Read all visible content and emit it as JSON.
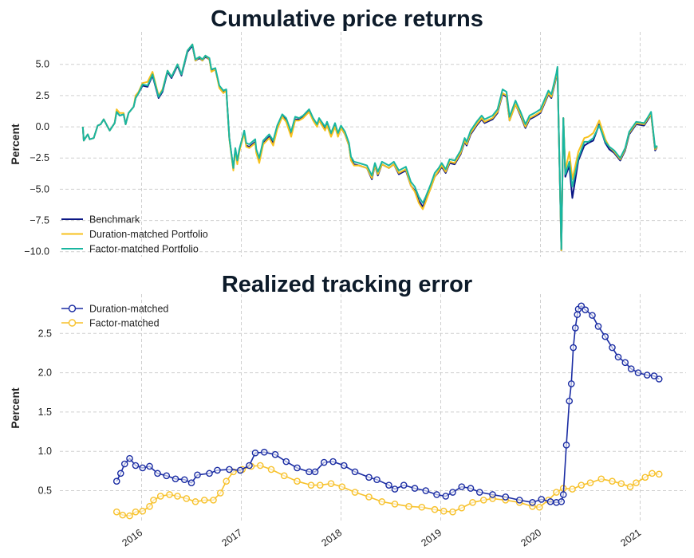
{
  "chart_data": [
    {
      "type": "line",
      "title": "Cumulative price returns",
      "ylabel": "Percent",
      "xlabel": "",
      "ylim": [
        -10.4,
        7.6
      ],
      "xlim": [
        2015.18,
        2021.46
      ],
      "yticks": [
        "5.0",
        "2.5",
        "0.0",
        "−2.5",
        "−5.0",
        "−7.5",
        "−10.0"
      ],
      "ytick_values": [
        5,
        2.5,
        0,
        -2.5,
        -5,
        -7.5,
        -10
      ],
      "xgrid_years": [
        2016,
        2017,
        2018,
        2019,
        2020,
        2021
      ],
      "grid": true,
      "legend_position": "bottom-left",
      "x": [
        2015.41,
        2015.42,
        2015.46,
        2015.48,
        2015.52,
        2015.56,
        2015.59,
        2015.62,
        2015.68,
        2015.73,
        2015.75,
        2015.78,
        2015.82,
        2015.84,
        2015.87,
        2015.92,
        2015.94,
        2015.97,
        2016.01,
        2016.06,
        2016.11,
        2016.17,
        2016.21,
        2016.26,
        2016.3,
        2016.36,
        2016.4,
        2016.46,
        2016.51,
        2016.54,
        2016.58,
        2016.61,
        2016.64,
        2016.68,
        2016.7,
        2016.74,
        2016.78,
        2016.82,
        2016.85,
        2016.88,
        2016.92,
        2016.94,
        2016.96,
        2016.98,
        2017.03,
        2017.05,
        2017.08,
        2017.11,
        2017.14,
        2017.15,
        2017.18,
        2017.22,
        2017.28,
        2017.32,
        2017.36,
        2017.41,
        2017.45,
        2017.5,
        2017.54,
        2017.58,
        2017.62,
        2017.68,
        2017.72,
        2017.76,
        2017.78,
        2017.84,
        2017.86,
        2017.9,
        2017.94,
        2017.97,
        2018.0,
        2018.04,
        2018.08,
        2018.1,
        2018.13,
        2018.18,
        2018.26,
        2018.31,
        2018.34,
        2018.37,
        2018.41,
        2018.48,
        2018.53,
        2018.58,
        2018.65,
        2018.7,
        2018.74,
        2018.78,
        2018.82,
        2018.85,
        2018.9,
        2018.94,
        2018.98,
        2019.01,
        2019.05,
        2019.09,
        2019.14,
        2019.2,
        2019.24,
        2019.26,
        2019.3,
        2019.36,
        2019.41,
        2019.44,
        2019.52,
        2019.57,
        2019.62,
        2019.66,
        2019.69,
        2019.75,
        2019.8,
        2019.85,
        2019.89,
        2019.94,
        2020.0,
        2020.08,
        2020.11,
        2020.16,
        2020.17,
        2020.21,
        2020.23,
        2020.25,
        2020.29,
        2020.32,
        2020.38,
        2020.44,
        2020.48,
        2020.53,
        2020.59,
        2020.65,
        2020.69,
        2020.74,
        2020.8,
        2020.85,
        2020.89,
        2020.96,
        2021.04,
        2021.08,
        2021.11,
        2021.15,
        2021.17
      ],
      "series": [
        {
          "name": "Benchmark",
          "color": "#0b1785",
          "values": [
            0,
            -1.1,
            -0.6,
            -1.0,
            -0.9,
            0.1,
            0.2,
            0.6,
            -0.3,
            0.3,
            1.2,
            0.9,
            1.0,
            0.2,
            1.1,
            1.6,
            2.3,
            2.7,
            3.3,
            3.2,
            4.1,
            2.3,
            2.8,
            4.4,
            3.9,
            4.9,
            4.1,
            6.0,
            6.5,
            5.3,
            5.5,
            5.3,
            5.6,
            5.4,
            4.5,
            4.6,
            3.2,
            2.8,
            2.9,
            -0.9,
            -3.4,
            -1.8,
            -2.8,
            -1.9,
            -0.4,
            -1.5,
            -1.6,
            -1.4,
            -1.2,
            -2.0,
            -2.7,
            -1.3,
            -0.8,
            -1.3,
            -0.1,
            0.9,
            0.5,
            -0.6,
            0.6,
            0.6,
            0.8,
            1.3,
            0.6,
            0.1,
            0.6,
            -0.2,
            0.2,
            -0.7,
            0.1,
            -0.7,
            -0.1,
            -0.6,
            -1.5,
            -2.6,
            -3.0,
            -3.1,
            -3.3,
            -4.2,
            -3.1,
            -3.9,
            -3.0,
            -3.3,
            -3.0,
            -3.8,
            -3.5,
            -4.7,
            -5.1,
            -5.9,
            -6.4,
            -5.9,
            -4.9,
            -4.0,
            -3.6,
            -3.2,
            -3.7,
            -2.9,
            -3.0,
            -2.2,
            -1.2,
            -1.5,
            -0.6,
            0.1,
            0.6,
            0.3,
            0.6,
            1.1,
            2.6,
            2.4,
            0.5,
            1.8,
            0.9,
            -0.1,
            0.6,
            0.8,
            1.1,
            2.6,
            2.3,
            4.0,
            4.7,
            -9.9,
            0.7,
            -4.0,
            -3.1,
            -5.7,
            -2.7,
            -1.5,
            -1.3,
            -1.1,
            0.2,
            -1.3,
            -1.8,
            -2.1,
            -2.7,
            -1.9,
            -0.6,
            0.2,
            0.1,
            0.6,
            1.0,
            -1.9,
            -1.6
          ]
        },
        {
          "name": "Duration-matched Portfolio",
          "color": "#f7c21e",
          "values": [
            0,
            -1.1,
            -0.6,
            -1.0,
            -0.9,
            0.1,
            0.2,
            0.6,
            -0.3,
            0.3,
            1.4,
            1.1,
            1.1,
            0.2,
            1.1,
            1.6,
            2.5,
            2.8,
            3.5,
            3.6,
            4.4,
            2.5,
            3.0,
            4.5,
            4.0,
            5.0,
            4.2,
            6.1,
            6.6,
            5.3,
            5.6,
            5.3,
            5.7,
            5.4,
            4.4,
            4.6,
            3.1,
            2.7,
            2.9,
            -1.0,
            -3.5,
            -1.9,
            -3.0,
            -2.0,
            -0.5,
            -1.6,
            -1.7,
            -1.5,
            -1.3,
            -2.1,
            -2.9,
            -1.4,
            -0.9,
            -1.5,
            -0.2,
            0.8,
            0.4,
            -0.8,
            0.5,
            0.5,
            0.7,
            1.2,
            0.5,
            0.0,
            0.5,
            -0.3,
            0.1,
            -0.8,
            0.0,
            -0.8,
            -0.1,
            -0.6,
            -1.5,
            -2.7,
            -3.1,
            -3.1,
            -3.3,
            -4.1,
            -3.1,
            -3.8,
            -3.0,
            -3.3,
            -3.0,
            -3.7,
            -3.4,
            -4.7,
            -5.2,
            -6.1,
            -6.6,
            -6.0,
            -4.9,
            -4.0,
            -3.5,
            -3.1,
            -3.6,
            -2.8,
            -2.9,
            -2.1,
            -1.1,
            -1.4,
            -0.5,
            0.2,
            0.7,
            0.4,
            0.7,
            1.2,
            2.7,
            2.5,
            0.5,
            1.8,
            1.0,
            0.0,
            0.7,
            0.9,
            1.2,
            2.7,
            2.4,
            4.1,
            4.7,
            -9.9,
            0.7,
            -3.5,
            -2.0,
            -4.2,
            -2.0,
            -0.9,
            -0.8,
            -0.5,
            0.5,
            -1.0,
            -1.6,
            -2.0,
            -2.6,
            -1.8,
            -0.5,
            0.3,
            0.2,
            0.7,
            1.0,
            -1.8,
            -1.6
          ]
        },
        {
          "name": "Factor-matched Portfolio",
          "color": "#19b6a0",
          "values": [
            0,
            -1.1,
            -0.6,
            -1.0,
            -0.9,
            0.1,
            0.2,
            0.6,
            -0.3,
            0.3,
            1.2,
            0.9,
            1.0,
            0.2,
            1.1,
            1.6,
            2.3,
            2.7,
            3.4,
            3.3,
            4.2,
            2.4,
            2.9,
            4.5,
            4.0,
            5.0,
            4.2,
            6.1,
            6.6,
            5.4,
            5.6,
            5.4,
            5.7,
            5.5,
            4.6,
            4.7,
            3.3,
            2.9,
            3.0,
            -0.9,
            -3.3,
            -1.7,
            -2.7,
            -1.8,
            -0.3,
            -1.3,
            -1.4,
            -1.2,
            -1.0,
            -1.8,
            -2.5,
            -1.1,
            -0.6,
            -1.1,
            0.1,
            1.0,
            0.7,
            -0.4,
            0.8,
            0.7,
            0.9,
            1.4,
            0.7,
            0.2,
            0.7,
            0.0,
            0.4,
            -0.5,
            0.3,
            -0.5,
            0.1,
            -0.4,
            -1.3,
            -2.4,
            -2.8,
            -2.9,
            -3.1,
            -3.9,
            -2.9,
            -3.6,
            -2.8,
            -3.1,
            -2.8,
            -3.5,
            -3.2,
            -4.4,
            -4.8,
            -5.6,
            -6.1,
            -5.6,
            -4.6,
            -3.7,
            -3.3,
            -2.9,
            -3.4,
            -2.6,
            -2.7,
            -1.9,
            -0.9,
            -1.2,
            -0.3,
            0.4,
            0.9,
            0.6,
            0.9,
            1.4,
            3.0,
            2.8,
            0.8,
            2.1,
            1.2,
            0.2,
            0.9,
            1.1,
            1.4,
            2.9,
            2.6,
            4.3,
            4.8,
            -9.8,
            0.7,
            -3.8,
            -2.8,
            -4.8,
            -2.5,
            -1.2,
            -1.2,
            -0.9,
            0.1,
            -1.2,
            -1.6,
            -1.9,
            -2.5,
            -1.7,
            -0.4,
            0.4,
            0.3,
            0.8,
            1.2,
            -1.7,
            -1.5
          ]
        }
      ]
    },
    {
      "type": "line",
      "title": "Realized tracking error",
      "ylabel": "Percent",
      "xlabel": "",
      "ylim": [
        0.1,
        3.0
      ],
      "xlim": [
        2015.18,
        2021.46
      ],
      "yticks": [
        "2.5",
        "2.0",
        "1.5",
        "1.0",
        "0.5"
      ],
      "ytick_values": [
        2.5,
        2.0,
        1.5,
        1.0,
        0.5
      ],
      "xticks": [
        "2016",
        "2017",
        "2018",
        "2019",
        "2020",
        "2021"
      ],
      "xtick_values": [
        2016,
        2017,
        2018,
        2019,
        2020,
        2021
      ],
      "grid": true,
      "legend_position": "top-left",
      "markers": "hollow-circle",
      "series": [
        {
          "name": "Duration-matched",
          "color": "#1a2ca3",
          "x": [
            2015.75,
            2015.79,
            2015.83,
            2015.88,
            2015.94,
            2016.01,
            2016.08,
            2016.16,
            2016.25,
            2016.34,
            2016.43,
            2016.5,
            2016.56,
            2016.68,
            2016.76,
            2016.88,
            2016.99,
            2017.08,
            2017.14,
            2017.23,
            2017.34,
            2017.45,
            2017.56,
            2017.68,
            2017.74,
            2017.83,
            2017.92,
            2018.03,
            2018.14,
            2018.28,
            2018.36,
            2018.48,
            2018.54,
            2018.63,
            2018.74,
            2018.85,
            2018.96,
            2019.05,
            2019.12,
            2019.21,
            2019.3,
            2019.39,
            2019.52,
            2019.65,
            2019.79,
            2019.92,
            2020.01,
            2020.1,
            2020.16,
            2020.21,
            2020.23,
            2020.26,
            2020.29,
            2020.31,
            2020.33,
            2020.35,
            2020.37,
            2020.38,
            2020.41,
            2020.45,
            2020.52,
            2020.58,
            2020.65,
            2020.72,
            2020.78,
            2020.85,
            2020.91,
            2020.98,
            2021.07,
            2021.14,
            2021.19
          ],
          "values": [
            0.62,
            0.72,
            0.84,
            0.91,
            0.82,
            0.79,
            0.81,
            0.72,
            0.69,
            0.65,
            0.64,
            0.6,
            0.7,
            0.72,
            0.76,
            0.77,
            0.76,
            0.82,
            0.98,
            0.99,
            0.96,
            0.87,
            0.79,
            0.74,
            0.74,
            0.86,
            0.87,
            0.82,
            0.74,
            0.67,
            0.64,
            0.57,
            0.52,
            0.57,
            0.53,
            0.5,
            0.45,
            0.43,
            0.48,
            0.55,
            0.53,
            0.48,
            0.45,
            0.42,
            0.38,
            0.35,
            0.39,
            0.36,
            0.35,
            0.36,
            0.45,
            1.08,
            1.64,
            1.86,
            2.32,
            2.57,
            2.74,
            2.81,
            2.85,
            2.8,
            2.73,
            2.59,
            2.46,
            2.32,
            2.2,
            2.13,
            2.05,
            2.0,
            1.97,
            1.96,
            1.92
          ]
        },
        {
          "name": "Factor-matched",
          "color": "#f7c12a",
          "x": [
            2015.75,
            2015.81,
            2015.88,
            2015.94,
            2016.01,
            2016.08,
            2016.12,
            2016.19,
            2016.28,
            2016.36,
            2016.45,
            2016.54,
            2016.63,
            2016.72,
            2016.79,
            2016.85,
            2016.92,
            2017.01,
            2017.1,
            2017.19,
            2017.3,
            2017.43,
            2017.56,
            2017.7,
            2017.79,
            2017.9,
            2018.01,
            2018.14,
            2018.28,
            2018.41,
            2018.54,
            2018.68,
            2018.81,
            2018.94,
            2019.03,
            2019.12,
            2019.21,
            2019.32,
            2019.43,
            2019.52,
            2019.65,
            2019.79,
            2019.92,
            2019.99,
            2020.08,
            2020.16,
            2020.23,
            2020.32,
            2020.41,
            2020.5,
            2020.61,
            2020.72,
            2020.81,
            2020.9,
            2020.96,
            2021.05,
            2021.12,
            2021.19
          ],
          "values": [
            0.23,
            0.19,
            0.18,
            0.23,
            0.24,
            0.3,
            0.38,
            0.43,
            0.45,
            0.43,
            0.4,
            0.36,
            0.38,
            0.38,
            0.47,
            0.62,
            0.74,
            0.77,
            0.81,
            0.82,
            0.77,
            0.69,
            0.62,
            0.57,
            0.57,
            0.59,
            0.55,
            0.48,
            0.42,
            0.36,
            0.33,
            0.3,
            0.29,
            0.26,
            0.24,
            0.23,
            0.28,
            0.35,
            0.38,
            0.4,
            0.38,
            0.35,
            0.3,
            0.29,
            0.38,
            0.48,
            0.53,
            0.52,
            0.57,
            0.6,
            0.65,
            0.62,
            0.59,
            0.55,
            0.6,
            0.67,
            0.72,
            0.71
          ]
        }
      ]
    }
  ]
}
